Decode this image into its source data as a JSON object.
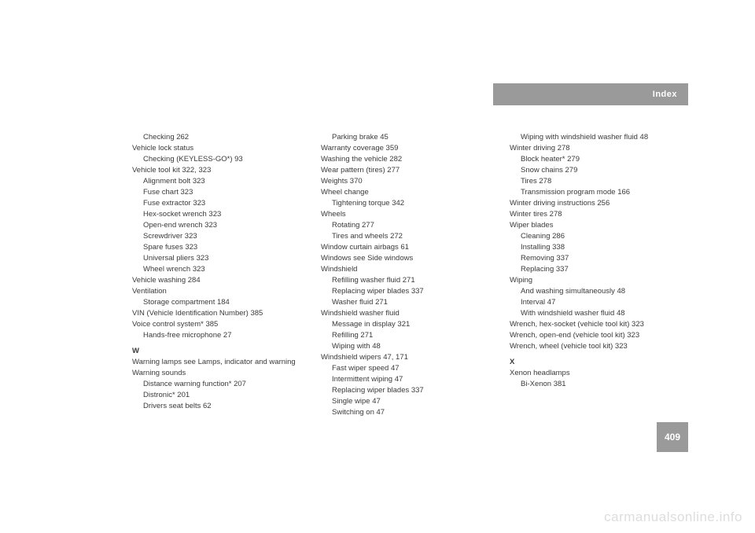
{
  "header": {
    "label": "Index"
  },
  "pagenum": "409",
  "watermark": "carmanualsonline.info",
  "col1": [
    {
      "t": "Checking 262",
      "i": 1
    },
    {
      "t": "Vehicle lock status",
      "i": 0
    },
    {
      "t": "Checking (KEYLESS-GO*) 93",
      "i": 1
    },
    {
      "t": "Vehicle tool kit 322, 323",
      "i": 0
    },
    {
      "t": "Alignment bolt 323",
      "i": 1
    },
    {
      "t": "Fuse chart 323",
      "i": 1
    },
    {
      "t": "Fuse extractor 323",
      "i": 1
    },
    {
      "t": "Hex-socket wrench 323",
      "i": 1
    },
    {
      "t": "Open-end wrench 323",
      "i": 1
    },
    {
      "t": "Screwdriver 323",
      "i": 1
    },
    {
      "t": "Spare fuses 323",
      "i": 1
    },
    {
      "t": "Universal pliers 323",
      "i": 1
    },
    {
      "t": "Wheel wrench 323",
      "i": 1
    },
    {
      "t": "Vehicle washing 284",
      "i": 0
    },
    {
      "t": "Ventilation",
      "i": 0
    },
    {
      "t": "Storage compartment 184",
      "i": 1
    },
    {
      "t": "VIN (Vehicle Identification Number) 385",
      "i": 0
    },
    {
      "t": "Voice control system* 385",
      "i": 0
    },
    {
      "t": "Hands-free microphone 27",
      "i": 1
    },
    {
      "t": "W",
      "i": 0,
      "letter": true
    },
    {
      "t": "Warning lamps see Lamps, indicator and warning",
      "i": 0,
      "wrap": true
    },
    {
      "t": "Warning sounds",
      "i": 0
    },
    {
      "t": "Distance warning function* 207",
      "i": 1
    },
    {
      "t": "Distronic* 201",
      "i": 1
    },
    {
      "t": "Drivers seat belts 62",
      "i": 1
    }
  ],
  "col2": [
    {
      "t": "Parking brake 45",
      "i": 1
    },
    {
      "t": "Warranty coverage 359",
      "i": 0
    },
    {
      "t": "Washing the vehicle 282",
      "i": 0
    },
    {
      "t": "Wear pattern (tires) 277",
      "i": 0
    },
    {
      "t": "Weights 370",
      "i": 0
    },
    {
      "t": "Wheel change",
      "i": 0
    },
    {
      "t": "Tightening torque 342",
      "i": 1
    },
    {
      "t": "Wheels",
      "i": 0
    },
    {
      "t": "Rotating 277",
      "i": 1
    },
    {
      "t": "Tires and wheels 272",
      "i": 1
    },
    {
      "t": "Window curtain airbags 61",
      "i": 0
    },
    {
      "t": "Windows see Side windows",
      "i": 0
    },
    {
      "t": "Windshield",
      "i": 0
    },
    {
      "t": "Refilling washer fluid 271",
      "i": 1
    },
    {
      "t": "Replacing wiper blades 337",
      "i": 1
    },
    {
      "t": "Washer fluid 271",
      "i": 1
    },
    {
      "t": "Windshield washer fluid",
      "i": 0
    },
    {
      "t": "Message in display 321",
      "i": 1
    },
    {
      "t": "Refilling 271",
      "i": 1
    },
    {
      "t": "Wiping with 48",
      "i": 1
    },
    {
      "t": "Windshield wipers 47, 171",
      "i": 0
    },
    {
      "t": "Fast wiper speed 47",
      "i": 1
    },
    {
      "t": "Intermittent wiping 47",
      "i": 1
    },
    {
      "t": "Replacing wiper blades 337",
      "i": 1
    },
    {
      "t": "Single wipe 47",
      "i": 1
    },
    {
      "t": "Switching on 47",
      "i": 1
    }
  ],
  "col3": [
    {
      "t": "Wiping with windshield washer fluid 48",
      "i": 1
    },
    {
      "t": "Winter driving 278",
      "i": 0
    },
    {
      "t": "Block heater* 279",
      "i": 1
    },
    {
      "t": "Snow chains 279",
      "i": 1
    },
    {
      "t": "Tires 278",
      "i": 1
    },
    {
      "t": "Transmission program mode 166",
      "i": 1
    },
    {
      "t": "Winter driving instructions 256",
      "i": 0
    },
    {
      "t": "Winter tires 278",
      "i": 0
    },
    {
      "t": "Wiper blades",
      "i": 0
    },
    {
      "t": "Cleaning 286",
      "i": 1
    },
    {
      "t": "Installing 338",
      "i": 1
    },
    {
      "t": "Removing 337",
      "i": 1
    },
    {
      "t": "Replacing 337",
      "i": 1
    },
    {
      "t": "Wiping",
      "i": 0
    },
    {
      "t": "And washing simultaneously 48",
      "i": 1
    },
    {
      "t": "Interval 47",
      "i": 1
    },
    {
      "t": "With windshield washer fluid 48",
      "i": 1
    },
    {
      "t": "Wrench, hex-socket (vehicle tool kit) 323",
      "i": 0
    },
    {
      "t": "Wrench, open-end (vehicle tool kit) 323",
      "i": 0
    },
    {
      "t": "Wrench, wheel (vehicle tool kit) 323",
      "i": 0
    },
    {
      "t": "X",
      "i": 0,
      "letter": true
    },
    {
      "t": "Xenon headlamps",
      "i": 0
    },
    {
      "t": "Bi-Xenon 381",
      "i": 1
    }
  ]
}
